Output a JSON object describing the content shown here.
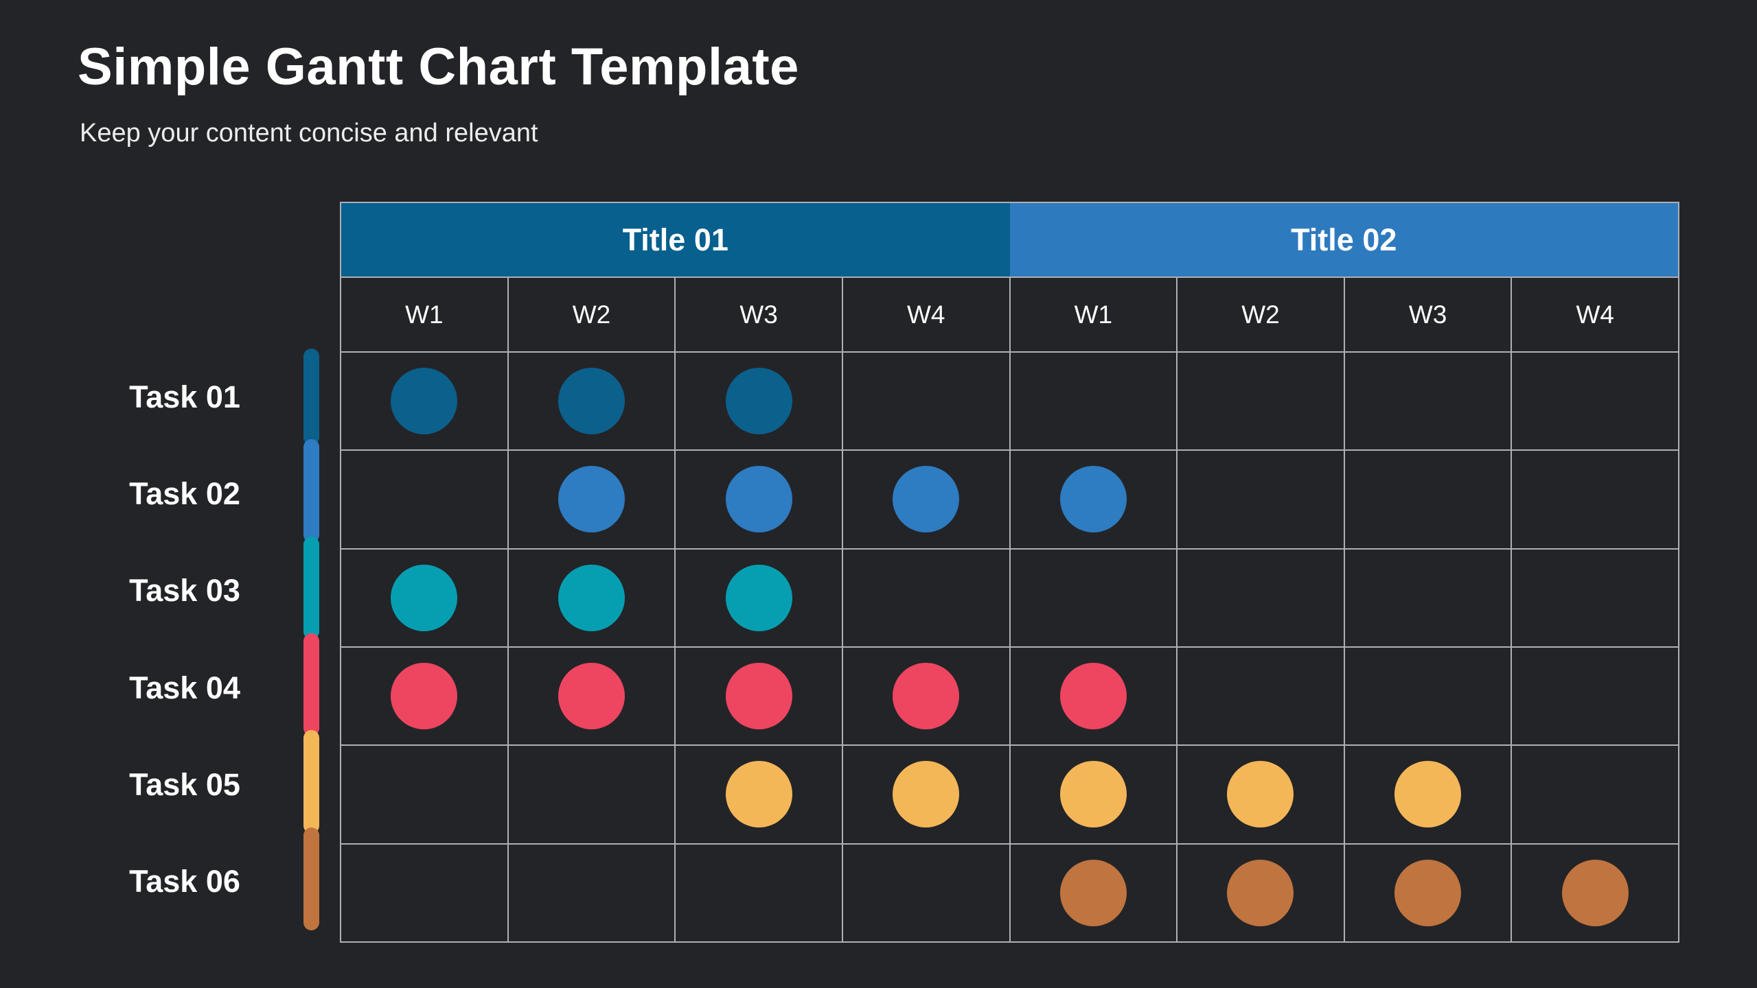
{
  "page": {
    "title": "Simple Gantt Chart Template",
    "subtitle": "Keep your content concise and relevant"
  },
  "colors": {
    "background": "#232428",
    "grid_line": "#d0d4da",
    "text_primary": "#ffffff",
    "text_secondary": "#eceded",
    "header_group_1": "#07608e",
    "header_group_2": "#2e7abe"
  },
  "chart_data": {
    "type": "table",
    "subtype": "gantt",
    "title": "Simple Gantt Chart Template",
    "subtitle": "Keep your content concise and relevant",
    "column_groups": [
      {
        "label": "Title 01",
        "color": "#07608e",
        "weeks": [
          "W1",
          "W2",
          "W3",
          "W4"
        ]
      },
      {
        "label": "Title 02",
        "color": "#2e7abe",
        "weeks": [
          "W1",
          "W2",
          "W3",
          "W4"
        ]
      }
    ],
    "week_columns": [
      "W1",
      "W2",
      "W3",
      "W4",
      "W1",
      "W2",
      "W3",
      "W4"
    ],
    "tasks": [
      {
        "label": "Task 01",
        "color": "#0b608c",
        "active_weeks": [
          1,
          1,
          1,
          0,
          0,
          0,
          0,
          0
        ]
      },
      {
        "label": "Task 02",
        "color": "#2e7cc1",
        "active_weeks": [
          0,
          1,
          1,
          1,
          1,
          0,
          0,
          0
        ]
      },
      {
        "label": "Task 03",
        "color": "#069fb1",
        "active_weeks": [
          1,
          1,
          1,
          0,
          0,
          0,
          0,
          0
        ]
      },
      {
        "label": "Task 04",
        "color": "#ee4561",
        "active_weeks": [
          1,
          1,
          1,
          1,
          1,
          0,
          0,
          0
        ]
      },
      {
        "label": "Task 05",
        "color": "#f4b758",
        "active_weeks": [
          0,
          0,
          1,
          1,
          1,
          1,
          1,
          0
        ]
      },
      {
        "label": "Task 06",
        "color": "#c0743f",
        "active_weeks": [
          0,
          0,
          0,
          0,
          1,
          1,
          1,
          1
        ]
      }
    ],
    "layout": {
      "legend_position": "none",
      "grid": true,
      "columns": 8,
      "rows": 6
    }
  }
}
